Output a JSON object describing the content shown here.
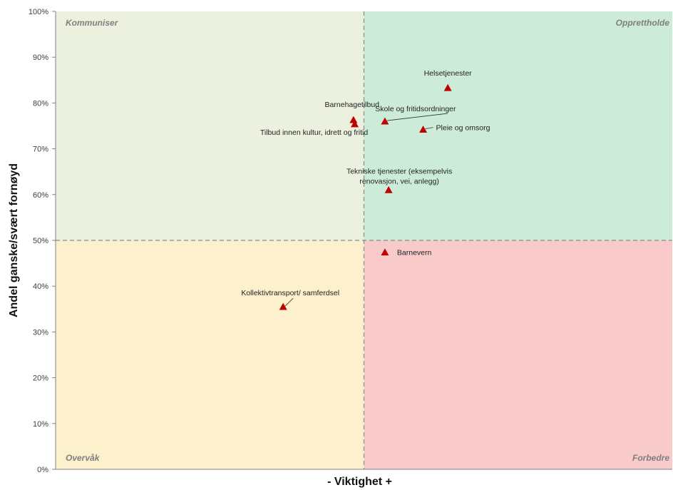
{
  "chart_data": {
    "type": "scatter",
    "title": "",
    "xlabel": "- Viktighet +",
    "ylabel": "Andel  ganske/svært fornøyd",
    "xlim": [
      0,
      1
    ],
    "ylim": [
      0,
      100
    ],
    "y_ticks": [
      "0%",
      "10%",
      "20%",
      "30%",
      "40%",
      "50%",
      "60%",
      "70%",
      "80%",
      "90%",
      "100%"
    ],
    "y_tick_values": [
      0,
      10,
      20,
      30,
      40,
      50,
      60,
      70,
      80,
      90,
      100
    ],
    "x_divider": 0.5,
    "y_divider": 50,
    "grid": false,
    "marker": "triangle",
    "marker_color": "#C00000",
    "quadrants": [
      {
        "name": "Kommuniser",
        "position": "top-left",
        "color": "#EBF1DE"
      },
      {
        "name": "Opprettholde",
        "position": "top-right",
        "color": "#CCEBD9"
      },
      {
        "name": "Overvåk",
        "position": "bottom-left",
        "color": "#FDF0CC"
      },
      {
        "name": "Forbedre",
        "position": "bottom-right",
        "color": "#F9CACA"
      }
    ],
    "points": [
      {
        "label": "Helsetjenester",
        "x": 0.636,
        "y": 83.3
      },
      {
        "label": "Barnehagetilbud",
        "x": 0.483,
        "y": 76.3
      },
      {
        "label": "Skole og fritidsordninger",
        "x": 0.534,
        "y": 76.0
      },
      {
        "label": "Tilbud innen kultur, idrett og fritid",
        "x": 0.485,
        "y": 75.4
      },
      {
        "label": "Pleie og omsorg",
        "x": 0.596,
        "y": 74.2
      },
      {
        "label": "Tekniske tjenester (eksempelvis renovasjon, vei, anlegg)",
        "x": 0.54,
        "y": 61.0
      },
      {
        "label": "Barnevern",
        "x": 0.534,
        "y": 47.4
      },
      {
        "label": "Kollektivtransport/ samferdsel",
        "x": 0.369,
        "y": 35.5
      }
    ]
  }
}
